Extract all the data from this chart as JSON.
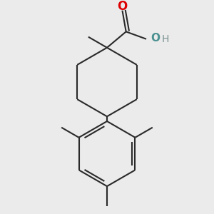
{
  "background_color": "#ebebeb",
  "bond_color": "#2a2a2a",
  "bond_width": 1.5,
  "atom_colors": {
    "O_red": "#dd0000",
    "O_teal": "#4a9090",
    "H_gray": "#7a9090",
    "C_black": "#2a2a2a"
  },
  "figsize": [
    3.0,
    3.0
  ],
  "dpi": 100,
  "xlim": [
    -1.6,
    1.6
  ],
  "ylim": [
    -2.2,
    2.1
  ]
}
